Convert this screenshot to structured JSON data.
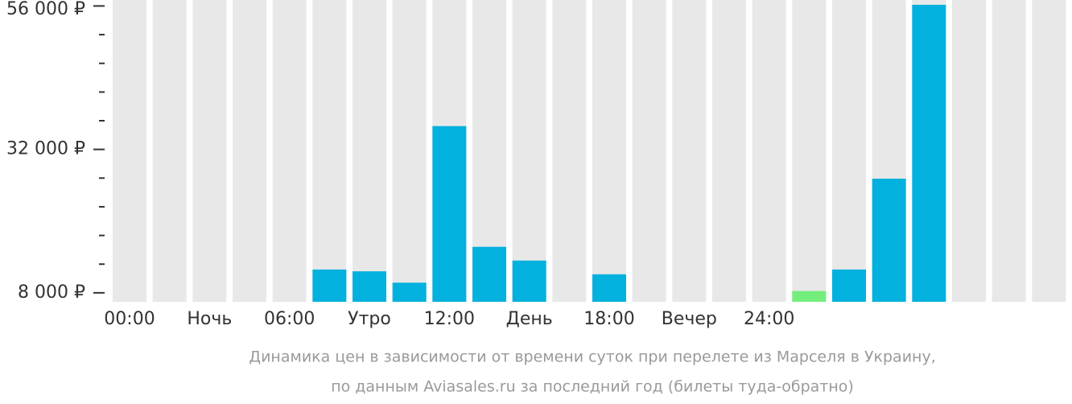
{
  "chart_data": {
    "type": "bar",
    "caption": [
      "Динамика цен в зависимости от времени суток при перелете из Марселя в Украину,",
      "по данным Aviasales.ru за последний год (билеты туда-обратно)"
    ],
    "categories": [
      "00:00",
      null,
      "Ночь",
      null,
      "06:00",
      null,
      "Утро",
      null,
      "12:00",
      null,
      "День",
      null,
      "18:00",
      null,
      "Вечер",
      null,
      "24:00",
      null,
      null,
      null,
      null,
      null,
      null,
      null
    ],
    "x_label_every": 2,
    "values": [
      null,
      null,
      null,
      null,
      null,
      11900,
      11600,
      9700,
      35900,
      15700,
      13400,
      null,
      11100,
      null,
      null,
      null,
      null,
      8300,
      11900,
      27100,
      56200,
      null,
      null,
      null
    ],
    "color": "#03b1de",
    "highlight_color": "#73ee7c",
    "highlight": [
      17
    ],
    "background_color": "#e8e8e9",
    "ylim": [
      6500,
      57000
    ],
    "yticks": [
      {
        "value": 8000,
        "label": "8 000 ₽"
      },
      {
        "value": 32000,
        "label": "32 000 ₽"
      },
      {
        "value": 56000,
        "label": "56 000 ₽"
      }
    ],
    "yminor_ticks": [
      12800,
      17600,
      22400,
      27200,
      36800,
      41600,
      46400,
      51200
    ]
  }
}
